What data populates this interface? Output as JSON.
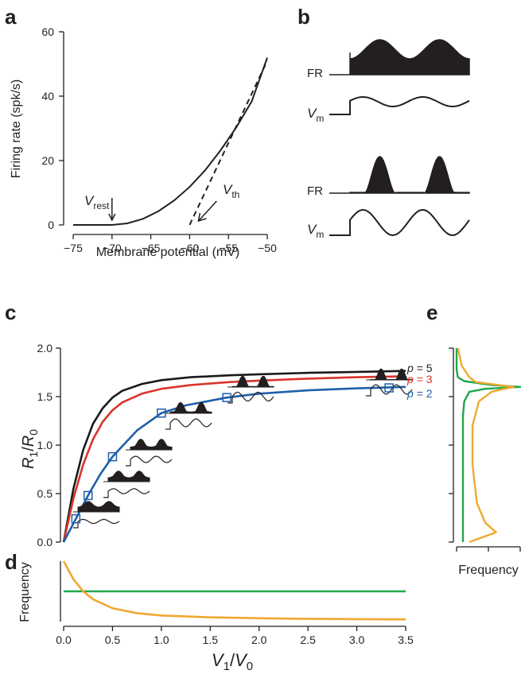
{
  "panels": {
    "a": "a",
    "b": "b",
    "c": "c",
    "d": "d",
    "e": "e"
  },
  "colors": {
    "p5": "#1a1a1a",
    "p3": "#d9342b",
    "p2": "#1f5fa8",
    "green": "#1ea84b",
    "orange": "#f0a830",
    "ink": "#231f20"
  },
  "chart_data": [
    {
      "id": "a",
      "type": "line",
      "xlabel": "Membrane potential (mV)",
      "ylabel": "Firing rate (spk/s)",
      "xlim": [
        -75,
        -50
      ],
      "ylim": [
        0,
        60
      ],
      "xticks": [
        "−75",
        "−70",
        "−65",
        "−60",
        "−55",
        "−50"
      ],
      "yticks": [
        "0",
        "20",
        "40",
        "60"
      ],
      "series": [
        {
          "style": "solid",
          "x": [
            -75,
            -70,
            -68,
            -66,
            -64,
            -62,
            -60,
            -58,
            -56,
            -54,
            -52,
            -50
          ],
          "y": [
            0,
            0,
            0.5,
            1.9,
            4.3,
            7.6,
            11.8,
            17.0,
            23.2,
            30.3,
            38.4,
            52
          ]
        },
        {
          "style": "dashed",
          "x": [
            -60,
            -50
          ],
          "y": [
            0,
            51
          ]
        }
      ],
      "annotations": {
        "vrest": {
          "base": "V",
          "sub": "rest",
          "x": -70
        },
        "vth": {
          "base": "V",
          "sub": "th",
          "x": -60
        }
      }
    },
    {
      "id": "b",
      "type": "line",
      "labels": {
        "fr": "FR",
        "vm_base": "V",
        "vm_sub": "m"
      },
      "traces": [
        "FR",
        "Vm",
        "FR",
        "Vm"
      ]
    },
    {
      "id": "c",
      "type": "line",
      "xlabel_base": "V",
      "xlabel_num": "1",
      "xlabel_den_base": "V",
      "xlabel_den": "0",
      "ylabel_base": "R",
      "ylabel_num": "1",
      "ylabel_den_base": "R",
      "ylabel_den": "0",
      "xlim": [
        0,
        3.5
      ],
      "ylim": [
        0,
        2.0
      ],
      "yticks": [
        "0.0",
        "0.5",
        "1.0",
        "1.5",
        "2.0"
      ],
      "series": [
        {
          "name": "p = 5",
          "p_label": "p",
          "p_value": "= 5",
          "x": [
            0,
            0.1,
            0.2,
            0.3,
            0.4,
            0.5,
            0.6,
            0.8,
            1.0,
            1.3,
            1.7,
            2.0,
            2.5,
            3.0,
            3.5
          ],
          "y": [
            0,
            0.55,
            0.95,
            1.22,
            1.38,
            1.49,
            1.56,
            1.63,
            1.67,
            1.7,
            1.72,
            1.73,
            1.745,
            1.755,
            1.765
          ]
        },
        {
          "name": "p = 3",
          "p_label": "p",
          "p_value": "= 3",
          "x": [
            0,
            0.1,
            0.2,
            0.3,
            0.4,
            0.5,
            0.6,
            0.8,
            1.0,
            1.3,
            1.7,
            2.0,
            2.5,
            3.0,
            3.5
          ],
          "y": [
            0,
            0.45,
            0.8,
            1.06,
            1.24,
            1.36,
            1.44,
            1.53,
            1.58,
            1.62,
            1.65,
            1.665,
            1.685,
            1.7,
            1.71
          ]
        },
        {
          "name": "p = 2",
          "p_label": "p",
          "p_value": "= 2",
          "x": [
            0,
            0.125,
            0.25,
            0.375,
            0.5,
            0.75,
            1.0,
            1.25,
            1.67,
            2.0,
            2.5,
            3.0,
            3.33,
            3.5
          ],
          "y": [
            0,
            0.24,
            0.48,
            0.7,
            0.88,
            1.15,
            1.33,
            1.41,
            1.49,
            1.53,
            1.565,
            1.585,
            1.595,
            1.6
          ]
        }
      ],
      "markers": {
        "x": [
          0.125,
          0.25,
          0.5,
          1.0,
          1.67,
          3.33
        ],
        "y": [
          0.24,
          0.48,
          0.88,
          1.33,
          1.49,
          1.59
        ]
      }
    },
    {
      "id": "d",
      "type": "line",
      "ylabel": "Frequency",
      "xlim": [
        0,
        3.5
      ],
      "xticks": [
        "0.0",
        "0.5",
        "1.0",
        "1.5",
        "2.0",
        "2.5",
        "3.0",
        "3.5"
      ],
      "series": [
        {
          "color": "green",
          "x": [
            0,
            3.5
          ],
          "y": [
            0.5,
            0.5
          ]
        },
        {
          "color": "orange",
          "x": [
            0,
            0.1,
            0.2,
            0.3,
            0.5,
            0.75,
            1.0,
            1.5,
            2.0,
            2.5,
            3.0,
            3.5
          ],
          "y": [
            1.0,
            0.7,
            0.5,
            0.37,
            0.22,
            0.14,
            0.1,
            0.07,
            0.055,
            0.045,
            0.04,
            0.035
          ]
        }
      ]
    },
    {
      "id": "e",
      "type": "line",
      "xlabel": "Frequency",
      "series": [
        {
          "color": "green",
          "r": [
            0.0,
            1.3,
            1.45,
            1.55,
            1.58,
            1.6,
            1.62,
            1.66,
            1.7,
            1.78,
            2.0
          ],
          "f": [
            0.1,
            0.1,
            0.12,
            0.2,
            0.45,
            1.0,
            0.55,
            0.12,
            0.02,
            0.0,
            0.0
          ]
        },
        {
          "color": "orange",
          "r": [
            0.0,
            0.1,
            0.2,
            0.4,
            0.8,
            1.2,
            1.45,
            1.55,
            1.58,
            1.6,
            1.65,
            1.7,
            1.75,
            1.82,
            2.0
          ],
          "f": [
            0.2,
            0.62,
            0.45,
            0.32,
            0.25,
            0.25,
            0.35,
            0.55,
            0.75,
            0.9,
            0.3,
            0.2,
            0.15,
            0.08,
            0.02
          ]
        }
      ]
    }
  ]
}
